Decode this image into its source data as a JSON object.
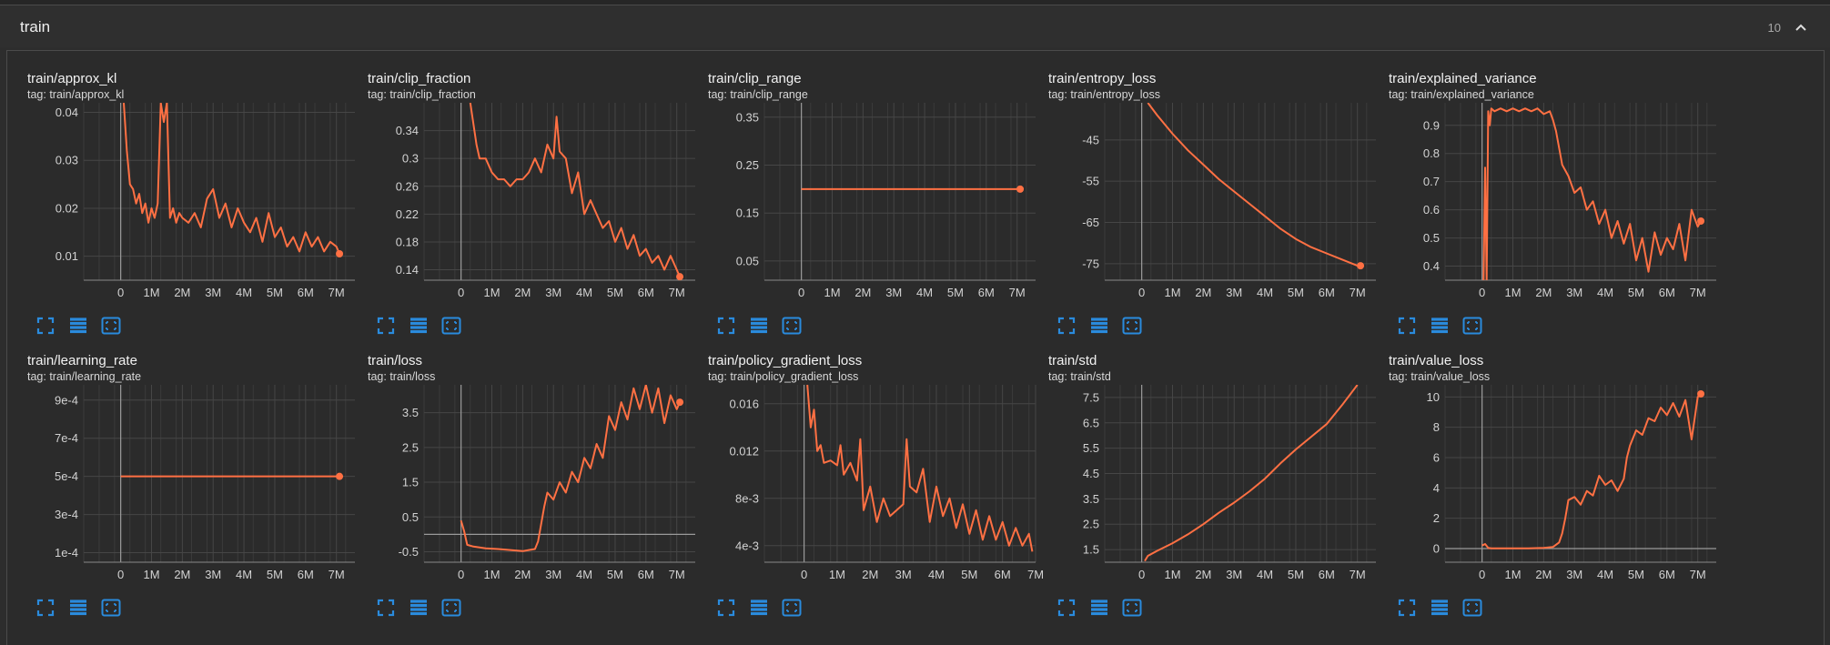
{
  "section": {
    "title": "train",
    "count": "10"
  },
  "colors": {
    "line": "#ff7043",
    "tool": "#2a8bdd"
  },
  "chart_data": [
    {
      "type": "line",
      "title": "train/approx_kl",
      "tag": "tag: train/approx_kl",
      "xlim": [
        -1.2,
        7.6
      ],
      "ylim": [
        0.005,
        0.042
      ],
      "xticks": [
        0,
        1,
        2,
        3,
        4,
        5,
        6,
        7
      ],
      "xtick_labels": [
        "0",
        "1M",
        "2M",
        "3M",
        "4M",
        "5M",
        "6M",
        "7M"
      ],
      "yticks": [
        0.01,
        0.02,
        0.03,
        0.04
      ],
      "ytick_labels": [
        "0.01",
        "0.02",
        "0.03",
        "0.04"
      ],
      "x": [
        0.1,
        0.2,
        0.3,
        0.4,
        0.5,
        0.6,
        0.7,
        0.8,
        0.9,
        1.0,
        1.1,
        1.2,
        1.3,
        1.4,
        1.5,
        1.6,
        1.7,
        1.8,
        1.9,
        2.0,
        2.2,
        2.4,
        2.6,
        2.8,
        3.0,
        3.2,
        3.4,
        3.6,
        3.8,
        4.0,
        4.2,
        4.4,
        4.6,
        4.8,
        5.0,
        5.2,
        5.4,
        5.6,
        5.8,
        6.0,
        6.2,
        6.4,
        6.6,
        6.8,
        7.0,
        7.1
      ],
      "y": [
        0.042,
        0.032,
        0.025,
        0.024,
        0.021,
        0.023,
        0.019,
        0.021,
        0.017,
        0.02,
        0.018,
        0.021,
        0.042,
        0.038,
        0.042,
        0.018,
        0.02,
        0.017,
        0.019,
        0.018,
        0.017,
        0.019,
        0.016,
        0.022,
        0.024,
        0.018,
        0.021,
        0.016,
        0.02,
        0.017,
        0.015,
        0.018,
        0.013,
        0.019,
        0.014,
        0.016,
        0.012,
        0.014,
        0.011,
        0.015,
        0.012,
        0.014,
        0.011,
        0.013,
        0.012,
        0.0105
      ],
      "last": [
        7.1,
        0.0105
      ]
    },
    {
      "type": "line",
      "title": "train/clip_fraction",
      "tag": "tag: train/clip_fraction",
      "xlim": [
        -1.2,
        7.6
      ],
      "ylim": [
        0.125,
        0.38
      ],
      "xticks": [
        0,
        1,
        2,
        3,
        4,
        5,
        6,
        7
      ],
      "xtick_labels": [
        "0",
        "1M",
        "2M",
        "3M",
        "4M",
        "5M",
        "6M",
        "7M"
      ],
      "yticks": [
        0.14,
        0.18,
        0.22,
        0.26,
        0.3,
        0.34
      ],
      "ytick_labels": [
        "0.14",
        "0.18",
        "0.22",
        "0.26",
        "0.3",
        "0.34"
      ],
      "x": [
        0.3,
        0.4,
        0.5,
        0.6,
        0.8,
        1.0,
        1.2,
        1.4,
        1.6,
        1.8,
        2.0,
        2.2,
        2.4,
        2.6,
        2.8,
        3.0,
        3.1,
        3.2,
        3.4,
        3.6,
        3.8,
        4.0,
        4.2,
        4.4,
        4.6,
        4.8,
        5.0,
        5.2,
        5.4,
        5.6,
        5.8,
        6.0,
        6.2,
        6.4,
        6.6,
        6.8,
        7.0,
        7.1
      ],
      "y": [
        0.38,
        0.35,
        0.32,
        0.3,
        0.3,
        0.28,
        0.27,
        0.27,
        0.26,
        0.27,
        0.27,
        0.28,
        0.3,
        0.28,
        0.32,
        0.3,
        0.36,
        0.31,
        0.3,
        0.25,
        0.28,
        0.22,
        0.24,
        0.22,
        0.2,
        0.21,
        0.18,
        0.2,
        0.17,
        0.19,
        0.16,
        0.17,
        0.15,
        0.16,
        0.14,
        0.16,
        0.14,
        0.13
      ],
      "last": [
        7.1,
        0.13
      ]
    },
    {
      "type": "line",
      "title": "train/clip_range",
      "tag": "tag: train/clip_range",
      "xlim": [
        -1.2,
        7.6
      ],
      "ylim": [
        0.01,
        0.38
      ],
      "xticks": [
        0,
        1,
        2,
        3,
        4,
        5,
        6,
        7
      ],
      "xtick_labels": [
        "0",
        "1M",
        "2M",
        "3M",
        "4M",
        "5M",
        "6M",
        "7M"
      ],
      "yticks": [
        0.05,
        0.15,
        0.25,
        0.35
      ],
      "ytick_labels": [
        "0.05",
        "0.15",
        "0.25",
        "0.35"
      ],
      "x": [
        0.0,
        7.1
      ],
      "y": [
        0.2,
        0.2
      ],
      "last": [
        7.1,
        0.2
      ]
    },
    {
      "type": "line",
      "title": "train/entropy_loss",
      "tag": "tag: train/entropy_loss",
      "xlim": [
        -1.2,
        7.6
      ],
      "ylim": [
        -79,
        -36
      ],
      "xticks": [
        0,
        1,
        2,
        3,
        4,
        5,
        6,
        7
      ],
      "xtick_labels": [
        "0",
        "1M",
        "2M",
        "3M",
        "4M",
        "5M",
        "6M",
        "7M"
      ],
      "yticks": [
        -75,
        -65,
        -55,
        -45
      ],
      "ytick_labels": [
        "-75",
        "-65",
        "-55",
        "-45"
      ],
      "x": [
        0.2,
        0.5,
        1.0,
        1.5,
        2.0,
        2.5,
        3.0,
        3.5,
        4.0,
        4.5,
        5.0,
        5.5,
        6.0,
        6.5,
        7.0,
        7.1
      ],
      "y": [
        -36,
        -39,
        -43.5,
        -47.5,
        -51,
        -54.5,
        -57.5,
        -60.5,
        -63.5,
        -66.5,
        -69,
        -71,
        -72.5,
        -74,
        -75.5,
        -75.5
      ],
      "last": [
        7.1,
        -75.5
      ]
    },
    {
      "type": "line",
      "title": "train/explained_variance",
      "tag": "tag: train/explained_variance",
      "xlim": [
        -1.2,
        7.6
      ],
      "ylim": [
        0.35,
        0.98
      ],
      "xticks": [
        0,
        1,
        2,
        3,
        4,
        5,
        6,
        7
      ],
      "xtick_labels": [
        "0",
        "1M",
        "2M",
        "3M",
        "4M",
        "5M",
        "6M",
        "7M"
      ],
      "yticks": [
        0.4,
        0.5,
        0.6,
        0.7,
        0.8,
        0.9
      ],
      "ytick_labels": [
        "0.4",
        "0.5",
        "0.6",
        "0.7",
        "0.8",
        "0.9"
      ],
      "x": [
        0.05,
        0.1,
        0.15,
        0.2,
        0.25,
        0.3,
        0.4,
        0.6,
        0.8,
        1.0,
        1.2,
        1.4,
        1.6,
        1.8,
        2.0,
        2.2,
        2.3,
        2.4,
        2.5,
        2.6,
        2.8,
        3.0,
        3.2,
        3.4,
        3.6,
        3.8,
        4.0,
        4.2,
        4.4,
        4.6,
        4.8,
        5.0,
        5.2,
        5.4,
        5.6,
        5.8,
        6.0,
        6.2,
        6.4,
        6.6,
        6.8,
        7.0,
        7.1
      ],
      "y": [
        0.35,
        0.75,
        0.35,
        0.95,
        0.9,
        0.96,
        0.95,
        0.96,
        0.95,
        0.96,
        0.95,
        0.96,
        0.95,
        0.96,
        0.94,
        0.95,
        0.92,
        0.88,
        0.82,
        0.76,
        0.72,
        0.66,
        0.68,
        0.6,
        0.63,
        0.55,
        0.6,
        0.5,
        0.56,
        0.48,
        0.55,
        0.42,
        0.5,
        0.38,
        0.52,
        0.44,
        0.5,
        0.46,
        0.55,
        0.42,
        0.6,
        0.54,
        0.56
      ],
      "last": [
        7.1,
        0.56
      ]
    },
    {
      "type": "line",
      "title": "train/learning_rate",
      "tag": "tag: train/learning_rate",
      "xlim": [
        -1.2,
        7.6
      ],
      "ylim": [
        5e-05,
        0.00098
      ],
      "xticks": [
        0,
        1,
        2,
        3,
        4,
        5,
        6,
        7
      ],
      "xtick_labels": [
        "0",
        "1M",
        "2M",
        "3M",
        "4M",
        "5M",
        "6M",
        "7M"
      ],
      "yticks": [
        0.0001,
        0.0003,
        0.0005,
        0.0007,
        0.0009
      ],
      "ytick_labels": [
        "1e-4",
        "3e-4",
        "5e-4",
        "7e-4",
        "9e-4"
      ],
      "x": [
        0.0,
        7.1
      ],
      "y": [
        0.0005,
        0.0005
      ],
      "last": [
        7.1,
        0.0005
      ]
    },
    {
      "type": "line",
      "title": "train/loss",
      "tag": "tag: train/loss",
      "xlim": [
        -1.2,
        7.6
      ],
      "ylim": [
        -0.8,
        4.3
      ],
      "xticks": [
        0,
        1,
        2,
        3,
        4,
        5,
        6,
        7
      ],
      "xtick_labels": [
        "0",
        "1M",
        "2M",
        "3M",
        "4M",
        "5M",
        "6M",
        "7M"
      ],
      "yticks": [
        -0.5,
        0.5,
        1.5,
        2.5,
        3.5
      ],
      "ytick_labels": [
        "-0.5",
        "0.5",
        "1.5",
        "2.5",
        "3.5"
      ],
      "x": [
        0.0,
        0.1,
        0.2,
        0.4,
        0.8,
        1.2,
        1.6,
        2.0,
        2.2,
        2.4,
        2.5,
        2.6,
        2.7,
        2.8,
        3.0,
        3.2,
        3.4,
        3.6,
        3.8,
        4.0,
        4.2,
        4.4,
        4.6,
        4.8,
        5.0,
        5.2,
        5.4,
        5.6,
        5.8,
        6.0,
        6.2,
        6.4,
        6.6,
        6.8,
        7.0,
        7.1
      ],
      "y": [
        0.4,
        0.1,
        -0.3,
        -0.35,
        -0.4,
        -0.42,
        -0.45,
        -0.48,
        -0.45,
        -0.42,
        -0.2,
        0.3,
        0.8,
        1.2,
        1.0,
        1.5,
        1.2,
        1.8,
        1.5,
        2.2,
        1.9,
        2.6,
        2.2,
        3.4,
        3.0,
        3.8,
        3.3,
        4.2,
        3.6,
        4.3,
        3.5,
        4.2,
        3.2,
        4.0,
        3.6,
        3.8
      ],
      "last": [
        7.1,
        3.8
      ]
    },
    {
      "type": "line",
      "title": "train/policy_gradient_loss",
      "tag": "tag: train/policy_gradient_loss",
      "xlim": [
        -1.2,
        7.0
      ],
      "ylim": [
        0.0026,
        0.0176
      ],
      "xticks": [
        0,
        1,
        2,
        3,
        4,
        5,
        6,
        7
      ],
      "xtick_labels": [
        "0",
        "1M",
        "2M",
        "3M",
        "4M",
        "5M",
        "6M",
        "7M"
      ],
      "yticks": [
        0.004,
        0.008,
        0.012,
        0.016
      ],
      "ytick_labels": [
        "4e-3",
        "8e-3",
        "0.012",
        "0.016"
      ],
      "x": [
        0.1,
        0.2,
        0.3,
        0.4,
        0.5,
        0.6,
        0.8,
        1.0,
        1.1,
        1.2,
        1.4,
        1.6,
        1.7,
        1.8,
        2.0,
        2.2,
        2.4,
        2.6,
        2.8,
        3.0,
        3.1,
        3.2,
        3.4,
        3.6,
        3.8,
        4.0,
        4.2,
        4.4,
        4.6,
        4.8,
        5.0,
        5.2,
        5.4,
        5.6,
        5.8,
        6.0,
        6.2,
        6.4,
        6.6,
        6.8,
        6.9
      ],
      "y": [
        0.0176,
        0.014,
        0.0155,
        0.012,
        0.0125,
        0.011,
        0.0112,
        0.0108,
        0.0125,
        0.01,
        0.011,
        0.0095,
        0.013,
        0.007,
        0.009,
        0.006,
        0.008,
        0.0065,
        0.007,
        0.0075,
        0.013,
        0.009,
        0.0085,
        0.0105,
        0.006,
        0.009,
        0.0065,
        0.008,
        0.0055,
        0.0075,
        0.005,
        0.007,
        0.0045,
        0.0065,
        0.0045,
        0.006,
        0.004,
        0.0055,
        0.004,
        0.005,
        0.0035
      ],
      "last": null
    },
    {
      "type": "line",
      "title": "train/std",
      "tag": "tag: train/std",
      "xlim": [
        -1.2,
        7.6
      ],
      "ylim": [
        1.0,
        8.0
      ],
      "xticks": [
        0,
        1,
        2,
        3,
        4,
        5,
        6,
        7
      ],
      "xtick_labels": [
        "0",
        "1M",
        "2M",
        "3M",
        "4M",
        "5M",
        "6M",
        "7M"
      ],
      "yticks": [
        1.5,
        2.5,
        3.5,
        4.5,
        5.5,
        6.5,
        7.5
      ],
      "ytick_labels": [
        "1.5",
        "2.5",
        "3.5",
        "4.5",
        "5.5",
        "6.5",
        "7.5"
      ],
      "x": [
        0.1,
        0.2,
        0.5,
        1.0,
        1.5,
        2.0,
        2.5,
        3.0,
        3.5,
        4.0,
        4.5,
        5.0,
        5.5,
        6.0,
        6.5,
        7.0
      ],
      "y": [
        1.05,
        1.25,
        1.45,
        1.75,
        2.1,
        2.5,
        2.95,
        3.35,
        3.8,
        4.3,
        4.9,
        5.45,
        5.95,
        6.45,
        7.2,
        8.0
      ],
      "last": null
    },
    {
      "type": "line",
      "title": "train/value_loss",
      "tag": "tag: train/value_loss",
      "xlim": [
        -1.2,
        7.6
      ],
      "ylim": [
        -0.9,
        10.8
      ],
      "xticks": [
        0,
        1,
        2,
        3,
        4,
        5,
        6,
        7
      ],
      "xtick_labels": [
        "0",
        "1M",
        "2M",
        "3M",
        "4M",
        "5M",
        "6M",
        "7M"
      ],
      "yticks": [
        0,
        2,
        4,
        6,
        8,
        10
      ],
      "ytick_labels": [
        "0",
        "2",
        "4",
        "6",
        "8",
        "10"
      ],
      "x": [
        0.0,
        0.1,
        0.2,
        0.3,
        0.6,
        1.0,
        1.5,
        2.0,
        2.3,
        2.5,
        2.6,
        2.7,
        2.8,
        3.0,
        3.2,
        3.4,
        3.6,
        3.8,
        4.0,
        4.2,
        4.4,
        4.6,
        4.7,
        4.8,
        5.0,
        5.2,
        5.4,
        5.6,
        5.8,
        6.0,
        6.2,
        6.4,
        6.6,
        6.8,
        7.0,
        7.1
      ],
      "y": [
        0.2,
        0.3,
        0.05,
        0.02,
        0.02,
        0.02,
        0.02,
        0.05,
        0.1,
        0.4,
        1.0,
        2.0,
        3.2,
        3.4,
        2.9,
        3.8,
        3.5,
        4.8,
        4.2,
        4.5,
        3.8,
        4.6,
        6.0,
        6.8,
        7.8,
        7.5,
        8.6,
        8.4,
        9.3,
        8.8,
        9.6,
        8.7,
        9.8,
        7.2,
        10.0,
        10.2
      ],
      "last": [
        7.1,
        10.2
      ]
    }
  ]
}
